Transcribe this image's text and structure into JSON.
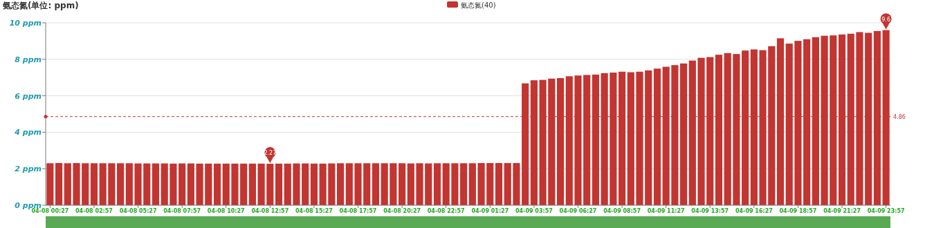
{
  "chart_data": {
    "type": "bar",
    "title": "氨态氮(单位: ppm)",
    "categories": [
      "04-08 00:27",
      null,
      null,
      null,
      null,
      "04-08 02:57",
      null,
      null,
      null,
      null,
      "04-08 05:27",
      null,
      null,
      null,
      null,
      "04-08 07:57",
      null,
      null,
      null,
      null,
      "04-08 10:27",
      null,
      null,
      null,
      null,
      "04-08 12:57",
      null,
      null,
      null,
      null,
      "04-08 15:27",
      null,
      null,
      null,
      null,
      "04-08 17:57",
      null,
      null,
      null,
      null,
      "04-08 20:27",
      null,
      null,
      null,
      null,
      "04-08 22:57",
      null,
      null,
      null,
      null,
      "04-09 01:27",
      null,
      null,
      null,
      null,
      "04-09 03:57",
      null,
      null,
      null,
      null,
      "04-09 06:27",
      null,
      null,
      null,
      null,
      "04-09 08:57",
      null,
      null,
      null,
      null,
      "04-09 11:27",
      null,
      null,
      null,
      null,
      "04-09 13:57",
      null,
      null,
      null,
      null,
      "04-09 16:27",
      null,
      null,
      null,
      null,
      "04-09 18:57",
      null,
      null,
      null,
      null,
      "04-09 21:27",
      null,
      null,
      null,
      null,
      "04-09 23:57"
    ],
    "series": [
      {
        "name": "氨态氮(40)",
        "color": "#c23531",
        "values": [
          2.3,
          2.31,
          2.3,
          2.31,
          2.3,
          2.3,
          2.3,
          2.3,
          2.3,
          2.3,
          2.29,
          2.29,
          2.29,
          2.29,
          2.28,
          2.29,
          2.29,
          2.28,
          2.28,
          2.28,
          2.28,
          2.28,
          2.28,
          2.28,
          2.28,
          2.27,
          2.28,
          2.28,
          2.29,
          2.29,
          2.28,
          2.28,
          2.29,
          2.3,
          2.3,
          2.3,
          2.3,
          2.3,
          2.3,
          2.3,
          2.3,
          2.29,
          2.3,
          2.29,
          2.3,
          2.3,
          2.3,
          2.3,
          2.3,
          2.31,
          2.31,
          2.31,
          2.31,
          2.31,
          6.68,
          6.85,
          6.87,
          6.94,
          6.97,
          7.07,
          7.11,
          7.14,
          7.16,
          7.24,
          7.27,
          7.32,
          7.29,
          7.32,
          7.39,
          7.49,
          7.59,
          7.68,
          7.77,
          7.93,
          8.08,
          8.12,
          8.25,
          8.34,
          8.29,
          8.48,
          8.54,
          8.5,
          8.72,
          9.15,
          8.86,
          9.01,
          9.1,
          9.21,
          9.29,
          9.31,
          9.36,
          9.4,
          9.49,
          9.45,
          9.55,
          9.6
        ]
      }
    ],
    "ylim": [
      0,
      10
    ],
    "yticks": [
      {
        "value": 0,
        "label": "0 ppm"
      },
      {
        "value": 2,
        "label": "2 ppm"
      },
      {
        "value": 4,
        "label": "4 ppm"
      },
      {
        "value": 6,
        "label": "6 ppm"
      },
      {
        "value": 8,
        "label": "8 ppm"
      },
      {
        "value": 10,
        "label": "10 ppm"
      }
    ],
    "grid": "y",
    "legend": "top",
    "ref_lines": [
      {
        "axis": "y",
        "value": 4.86,
        "label": "4.86",
        "color": "#c23531",
        "line_style": "dashed"
      }
    ],
    "annotations": [
      {
        "text": "2.27",
        "x": "04-08 12:57",
        "y": 2.27
      },
      {
        "text": "9.6",
        "x": "04-09 23:57",
        "y": 9.6
      }
    ]
  }
}
